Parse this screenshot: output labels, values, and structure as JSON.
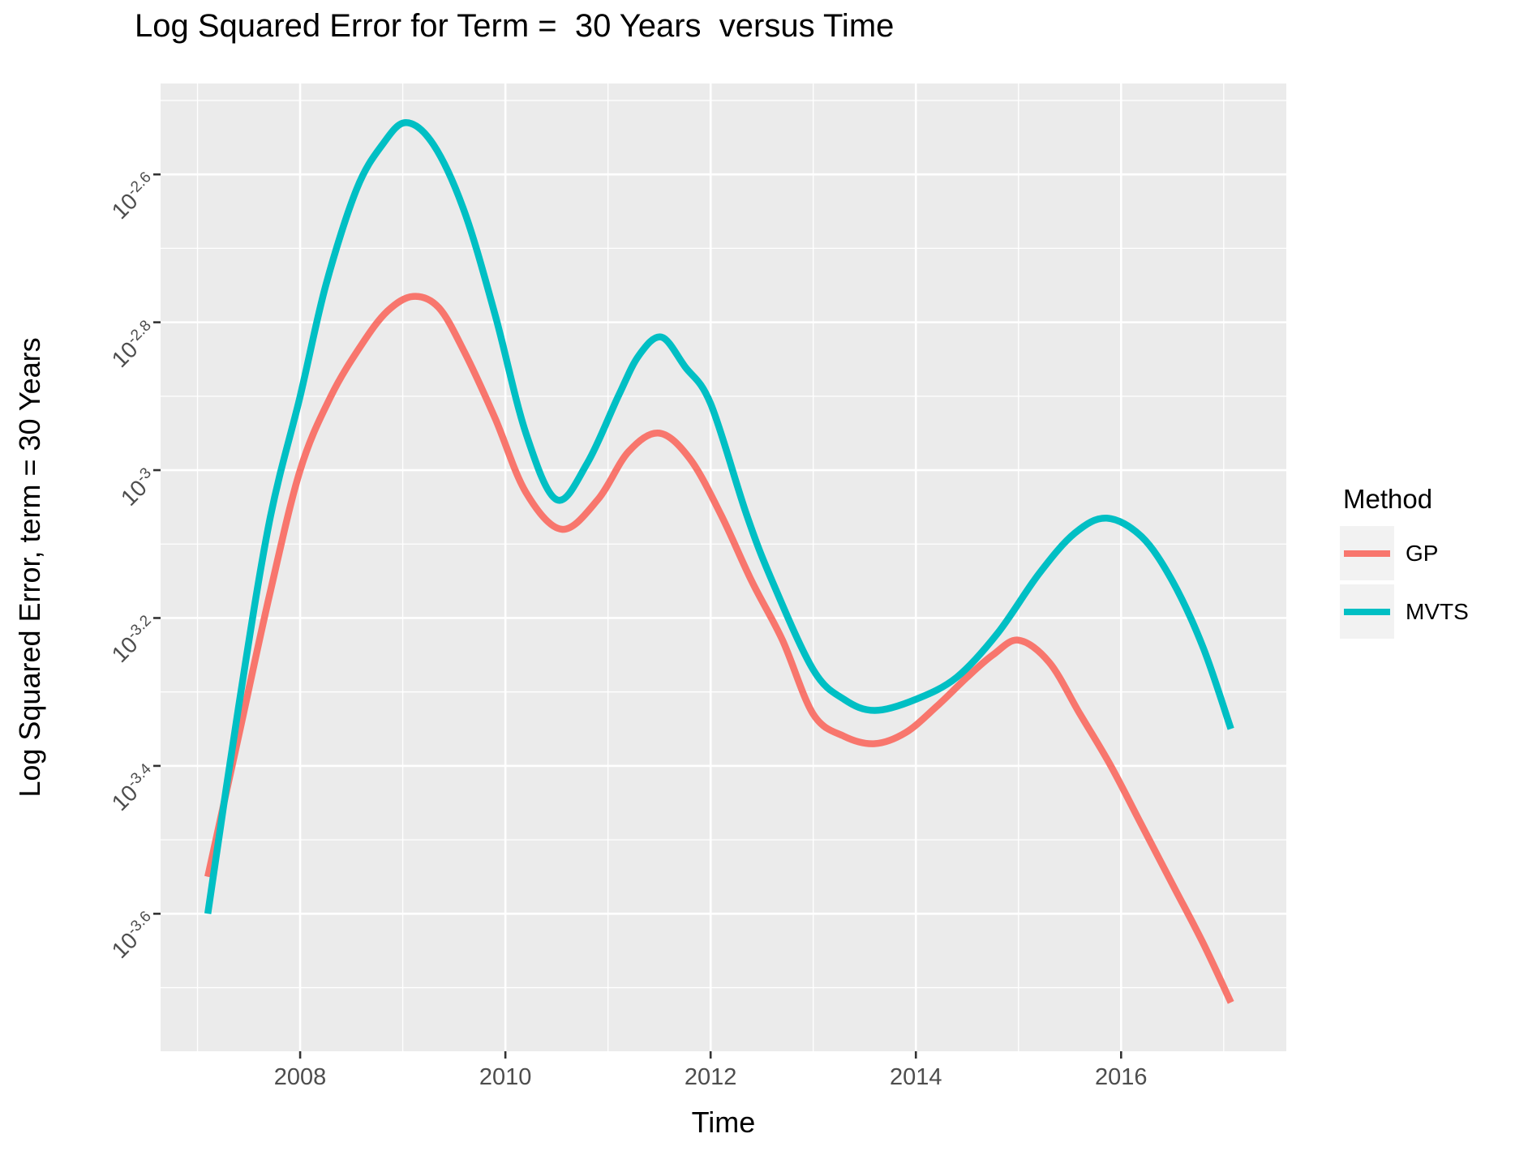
{
  "chart_data": {
    "type": "line",
    "title": "Log Squared Error for Term =  30 Years  versus Time",
    "xlabel": "Time",
    "ylabel": "Log Squared Error, term = 30 Years",
    "legend_title": "Method",
    "legend_position": "right",
    "grid": true,
    "y_scale": "log10",
    "y_value_format": "point y-values are base-10 exponents; axis labels rendered as 10^exp",
    "x_domain": [
      2006.64,
      2017.61
    ],
    "y_domain": [
      -3.786,
      -2.477
    ],
    "x_major_ticks": [
      2008,
      2010,
      2012,
      2014,
      2016
    ],
    "x_tick_labels": [
      "2008",
      "2010",
      "2012",
      "2014",
      "2016"
    ],
    "x_minor_gridlines": [
      2007,
      2009,
      2011,
      2013,
      2015,
      2017
    ],
    "y_major_ticks": [
      -2.6,
      -2.8,
      -3.0,
      -3.2,
      -3.4,
      -3.6
    ],
    "y_tick_labels": [
      {
        "base": "10",
        "exp": "-2.6"
      },
      {
        "base": "10",
        "exp": "-2.8"
      },
      {
        "base": "10",
        "exp": "-3"
      },
      {
        "base": "10",
        "exp": "-3.2"
      },
      {
        "base": "10",
        "exp": "-3.4"
      },
      {
        "base": "10",
        "exp": "-3.6"
      }
    ],
    "y_minor_gridlines": [
      -2.5,
      -2.7,
      -2.9,
      -3.1,
      -3.3,
      -3.5,
      -3.7
    ],
    "series": [
      {
        "name": "GP",
        "color": "#F8766D",
        "points": [
          [
            2007.1,
            -3.55
          ],
          [
            2007.4,
            -3.36
          ],
          [
            2007.7,
            -3.17
          ],
          [
            2008.0,
            -3.0
          ],
          [
            2008.3,
            -2.9
          ],
          [
            2008.6,
            -2.83
          ],
          [
            2008.85,
            -2.785
          ],
          [
            2009.1,
            -2.765
          ],
          [
            2009.35,
            -2.78
          ],
          [
            2009.6,
            -2.84
          ],
          [
            2009.9,
            -2.93
          ],
          [
            2010.2,
            -3.03
          ],
          [
            2010.55,
            -3.08
          ],
          [
            2010.9,
            -3.04
          ],
          [
            2011.2,
            -2.975
          ],
          [
            2011.5,
            -2.95
          ],
          [
            2011.8,
            -2.985
          ],
          [
            2012.1,
            -3.06
          ],
          [
            2012.4,
            -3.15
          ],
          [
            2012.7,
            -3.23
          ],
          [
            2013.0,
            -3.33
          ],
          [
            2013.3,
            -3.36
          ],
          [
            2013.6,
            -3.37
          ],
          [
            2013.9,
            -3.355
          ],
          [
            2014.2,
            -3.32
          ],
          [
            2014.5,
            -3.28
          ],
          [
            2014.75,
            -3.25
          ],
          [
            2015.0,
            -3.23
          ],
          [
            2015.3,
            -3.26
          ],
          [
            2015.6,
            -3.33
          ],
          [
            2015.9,
            -3.4
          ],
          [
            2016.2,
            -3.48
          ],
          [
            2016.5,
            -3.56
          ],
          [
            2016.8,
            -3.64
          ],
          [
            2017.07,
            -3.72
          ]
        ]
      },
      {
        "name": "MVTS",
        "color": "#00BFC4",
        "points": [
          [
            2007.1,
            -3.6
          ],
          [
            2007.4,
            -3.32
          ],
          [
            2007.7,
            -3.07
          ],
          [
            2008.0,
            -2.9
          ],
          [
            2008.25,
            -2.75
          ],
          [
            2008.55,
            -2.62
          ],
          [
            2008.8,
            -2.56
          ],
          [
            2009.03,
            -2.53
          ],
          [
            2009.3,
            -2.56
          ],
          [
            2009.6,
            -2.65
          ],
          [
            2009.9,
            -2.79
          ],
          [
            2010.2,
            -2.95
          ],
          [
            2010.5,
            -3.04
          ],
          [
            2010.8,
            -2.99
          ],
          [
            2011.1,
            -2.9
          ],
          [
            2011.3,
            -2.845
          ],
          [
            2011.52,
            -2.82
          ],
          [
            2011.75,
            -2.86
          ],
          [
            2012.0,
            -2.91
          ],
          [
            2012.35,
            -3.06
          ],
          [
            2012.6,
            -3.15
          ],
          [
            2013.0,
            -3.27
          ],
          [
            2013.3,
            -3.31
          ],
          [
            2013.6,
            -3.325
          ],
          [
            2014.0,
            -3.31
          ],
          [
            2014.4,
            -3.28
          ],
          [
            2014.8,
            -3.22
          ],
          [
            2015.2,
            -3.14
          ],
          [
            2015.55,
            -3.085
          ],
          [
            2015.86,
            -3.065
          ],
          [
            2016.2,
            -3.09
          ],
          [
            2016.5,
            -3.15
          ],
          [
            2016.8,
            -3.24
          ],
          [
            2017.07,
            -3.35
          ]
        ]
      }
    ]
  },
  "style": {
    "panel_background": "#EBEBEB",
    "gridline_color": "#FFFFFF",
    "tick_mark_color": "#333333",
    "tick_label_color": "#4D4D4D",
    "text_color": "#000000",
    "legend_key_background": "#F2F2F2",
    "page_background": "#FFFFFF"
  }
}
